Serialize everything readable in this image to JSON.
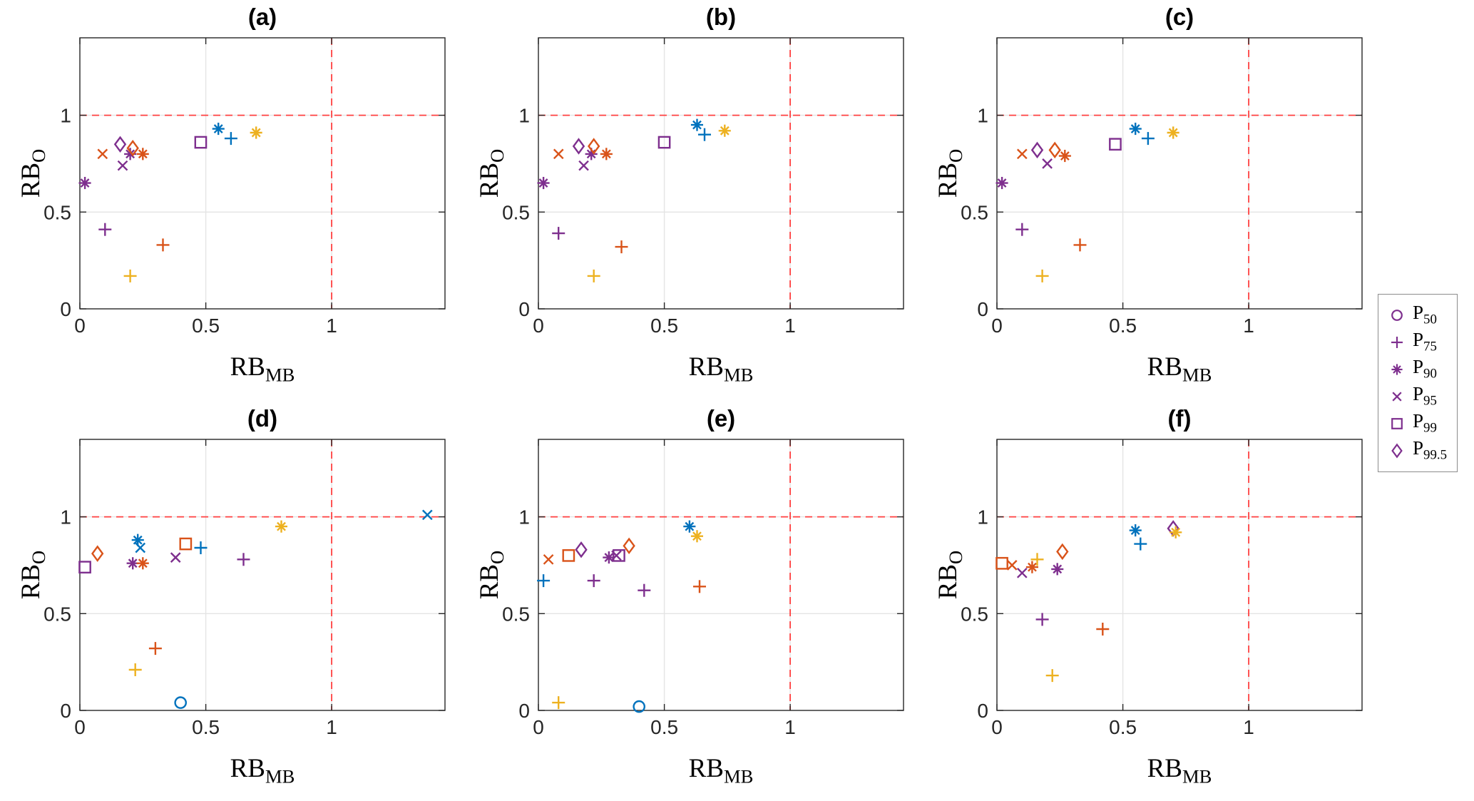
{
  "figure": {
    "colors": {
      "blue": "#0072BD",
      "orange": "#D95319",
      "yellow": "#EDB120",
      "purple": "#7E2F8E",
      "ref": "#FF4040",
      "grid": "#E4E4E4",
      "axis": "#262626"
    },
    "xlabel": {
      "main": "RB",
      "sub": "MB"
    },
    "ylabel": {
      "main": "RB",
      "sub": "O"
    },
    "legend": {
      "color": "purple",
      "items": [
        {
          "marker": "circle",
          "label": "P",
          "sub": "50"
        },
        {
          "marker": "plus",
          "label": "P",
          "sub": "75"
        },
        {
          "marker": "asterisk",
          "label": "P",
          "sub": "90"
        },
        {
          "marker": "x",
          "label": "P",
          "sub": "95"
        },
        {
          "marker": "square",
          "label": "P",
          "sub": "99"
        },
        {
          "marker": "diamond",
          "label": "P",
          "sub": "99.5"
        }
      ]
    }
  },
  "chart_data": [
    {
      "type": "scatter",
      "title": "(a)",
      "xlabel": "RB_MB",
      "ylabel": "RB_O",
      "xlim": [
        0,
        1.45
      ],
      "ylim": [
        0,
        1.4
      ],
      "xticks": [
        0,
        0.5,
        1
      ],
      "yticks": [
        0,
        0.5,
        1
      ],
      "ref_lines": {
        "x": 1,
        "y": 1
      },
      "grid": true,
      "point_key": [
        "marker",
        "color",
        "x",
        "y"
      ],
      "points": [
        [
          "asterisk",
          "purple",
          0.02,
          0.65
        ],
        [
          "x",
          "orange",
          0.09,
          0.8
        ],
        [
          "plus",
          "purple",
          0.1,
          0.41
        ],
        [
          "diamond",
          "purple",
          0.16,
          0.85
        ],
        [
          "x",
          "purple",
          0.17,
          0.74
        ],
        [
          "asterisk",
          "purple",
          0.2,
          0.8
        ],
        [
          "diamond",
          "orange",
          0.21,
          0.83
        ],
        [
          "asterisk",
          "orange",
          0.25,
          0.8
        ],
        [
          "plus",
          "yellow",
          0.2,
          0.17
        ],
        [
          "plus",
          "orange",
          0.33,
          0.33
        ],
        [
          "square",
          "purple",
          0.48,
          0.86
        ],
        [
          "asterisk",
          "blue",
          0.55,
          0.93
        ],
        [
          "plus",
          "blue",
          0.6,
          0.88
        ],
        [
          "asterisk",
          "yellow",
          0.7,
          0.91
        ]
      ]
    },
    {
      "type": "scatter",
      "title": "(b)",
      "xlabel": "RB_MB",
      "ylabel": "RB_O",
      "xlim": [
        0,
        1.45
      ],
      "ylim": [
        0,
        1.4
      ],
      "xticks": [
        0,
        0.5,
        1
      ],
      "yticks": [
        0,
        0.5,
        1
      ],
      "ref_lines": {
        "x": 1,
        "y": 1
      },
      "grid": true,
      "point_key": [
        "marker",
        "color",
        "x",
        "y"
      ],
      "points": [
        [
          "asterisk",
          "purple",
          0.02,
          0.65
        ],
        [
          "x",
          "orange",
          0.08,
          0.8
        ],
        [
          "plus",
          "purple",
          0.08,
          0.39
        ],
        [
          "diamond",
          "purple",
          0.16,
          0.84
        ],
        [
          "x",
          "purple",
          0.18,
          0.74
        ],
        [
          "asterisk",
          "purple",
          0.21,
          0.8
        ],
        [
          "diamond",
          "orange",
          0.22,
          0.84
        ],
        [
          "asterisk",
          "orange",
          0.27,
          0.8
        ],
        [
          "plus",
          "yellow",
          0.22,
          0.17
        ],
        [
          "plus",
          "orange",
          0.33,
          0.32
        ],
        [
          "square",
          "purple",
          0.5,
          0.86
        ],
        [
          "asterisk",
          "blue",
          0.63,
          0.95
        ],
        [
          "plus",
          "blue",
          0.66,
          0.9
        ],
        [
          "asterisk",
          "yellow",
          0.74,
          0.92
        ]
      ]
    },
    {
      "type": "scatter",
      "title": "(c)",
      "xlabel": "RB_MB",
      "ylabel": "RB_O",
      "xlim": [
        0,
        1.45
      ],
      "ylim": [
        0,
        1.4
      ],
      "xticks": [
        0,
        0.5,
        1
      ],
      "yticks": [
        0,
        0.5,
        1
      ],
      "ref_lines": {
        "x": 1,
        "y": 1
      },
      "grid": true,
      "point_key": [
        "marker",
        "color",
        "x",
        "y"
      ],
      "points": [
        [
          "asterisk",
          "purple",
          0.02,
          0.65
        ],
        [
          "x",
          "orange",
          0.1,
          0.8
        ],
        [
          "plus",
          "purple",
          0.1,
          0.41
        ],
        [
          "diamond",
          "purple",
          0.16,
          0.82
        ],
        [
          "x",
          "purple",
          0.2,
          0.75
        ],
        [
          "diamond",
          "orange",
          0.23,
          0.82
        ],
        [
          "asterisk",
          "orange",
          0.27,
          0.79
        ],
        [
          "plus",
          "yellow",
          0.18,
          0.17
        ],
        [
          "plus",
          "orange",
          0.33,
          0.33
        ],
        [
          "square",
          "purple",
          0.47,
          0.85
        ],
        [
          "asterisk",
          "blue",
          0.55,
          0.93
        ],
        [
          "plus",
          "blue",
          0.6,
          0.88
        ],
        [
          "asterisk",
          "yellow",
          0.7,
          0.91
        ]
      ]
    },
    {
      "type": "scatter",
      "title": "(d)",
      "xlabel": "RB_MB",
      "ylabel": "RB_O",
      "xlim": [
        0,
        1.45
      ],
      "ylim": [
        0,
        1.4
      ],
      "xticks": [
        0,
        0.5,
        1
      ],
      "yticks": [
        0,
        0.5,
        1
      ],
      "ref_lines": {
        "x": 1,
        "y": 1
      },
      "grid": true,
      "point_key": [
        "marker",
        "color",
        "x",
        "y"
      ],
      "points": [
        [
          "square",
          "purple",
          0.02,
          0.74
        ],
        [
          "diamond",
          "orange",
          0.07,
          0.81
        ],
        [
          "plus",
          "yellow",
          0.22,
          0.21
        ],
        [
          "asterisk",
          "blue",
          0.23,
          0.88
        ],
        [
          "x",
          "blue",
          0.24,
          0.84
        ],
        [
          "asterisk",
          "purple",
          0.21,
          0.76
        ],
        [
          "asterisk",
          "orange",
          0.25,
          0.76
        ],
        [
          "plus",
          "orange",
          0.3,
          0.32
        ],
        [
          "x",
          "purple",
          0.38,
          0.79
        ],
        [
          "circle",
          "blue",
          0.4,
          0.04
        ],
        [
          "square",
          "orange",
          0.42,
          0.86
        ],
        [
          "plus",
          "blue",
          0.48,
          0.84
        ],
        [
          "plus",
          "purple",
          0.65,
          0.78
        ],
        [
          "asterisk",
          "yellow",
          0.8,
          0.95
        ],
        [
          "x",
          "blue",
          1.38,
          1.01
        ]
      ]
    },
    {
      "type": "scatter",
      "title": "(e)",
      "xlabel": "RB_MB",
      "ylabel": "RB_O",
      "xlim": [
        0,
        1.45
      ],
      "ylim": [
        0,
        1.4
      ],
      "xticks": [
        0,
        0.5,
        1
      ],
      "yticks": [
        0,
        0.5,
        1
      ],
      "ref_lines": {
        "x": 1,
        "y": 1
      },
      "grid": true,
      "point_key": [
        "marker",
        "color",
        "x",
        "y"
      ],
      "points": [
        [
          "plus",
          "blue",
          0.02,
          0.67
        ],
        [
          "x",
          "orange",
          0.04,
          0.78
        ],
        [
          "plus",
          "yellow",
          0.08,
          0.04
        ],
        [
          "square",
          "orange",
          0.12,
          0.8
        ],
        [
          "diamond",
          "purple",
          0.17,
          0.83
        ],
        [
          "plus",
          "purple",
          0.22,
          0.67
        ],
        [
          "asterisk",
          "purple",
          0.28,
          0.79
        ],
        [
          "x",
          "purple",
          0.31,
          0.8
        ],
        [
          "square",
          "purple",
          0.32,
          0.8
        ],
        [
          "diamond",
          "orange",
          0.36,
          0.85
        ],
        [
          "circle",
          "blue",
          0.4,
          0.02
        ],
        [
          "plus",
          "purple",
          0.42,
          0.62
        ],
        [
          "asterisk",
          "blue",
          0.6,
          0.95
        ],
        [
          "asterisk",
          "yellow",
          0.63,
          0.9
        ],
        [
          "plus",
          "orange",
          0.64,
          0.64
        ]
      ]
    },
    {
      "type": "scatter",
      "title": "(f)",
      "xlabel": "RB_MB",
      "ylabel": "RB_O",
      "xlim": [
        0,
        1.45
      ],
      "ylim": [
        0,
        1.4
      ],
      "xticks": [
        0,
        0.5,
        1
      ],
      "yticks": [
        0,
        0.5,
        1
      ],
      "ref_lines": {
        "x": 1,
        "y": 1
      },
      "grid": true,
      "point_key": [
        "marker",
        "color",
        "x",
        "y"
      ],
      "points": [
        [
          "square",
          "orange",
          0.02,
          0.76
        ],
        [
          "x",
          "orange",
          0.06,
          0.75
        ],
        [
          "x",
          "purple",
          0.1,
          0.71
        ],
        [
          "asterisk",
          "orange",
          0.14,
          0.74
        ],
        [
          "plus",
          "yellow",
          0.16,
          0.78
        ],
        [
          "plus",
          "purple",
          0.18,
          0.47
        ],
        [
          "plus",
          "yellow",
          0.22,
          0.18
        ],
        [
          "asterisk",
          "purple",
          0.24,
          0.73
        ],
        [
          "diamond",
          "orange",
          0.26,
          0.82
        ],
        [
          "plus",
          "orange",
          0.42,
          0.42
        ],
        [
          "asterisk",
          "blue",
          0.55,
          0.93
        ],
        [
          "plus",
          "blue",
          0.57,
          0.86
        ],
        [
          "diamond",
          "purple",
          0.7,
          0.94
        ],
        [
          "asterisk",
          "yellow",
          0.71,
          0.92
        ]
      ]
    }
  ]
}
